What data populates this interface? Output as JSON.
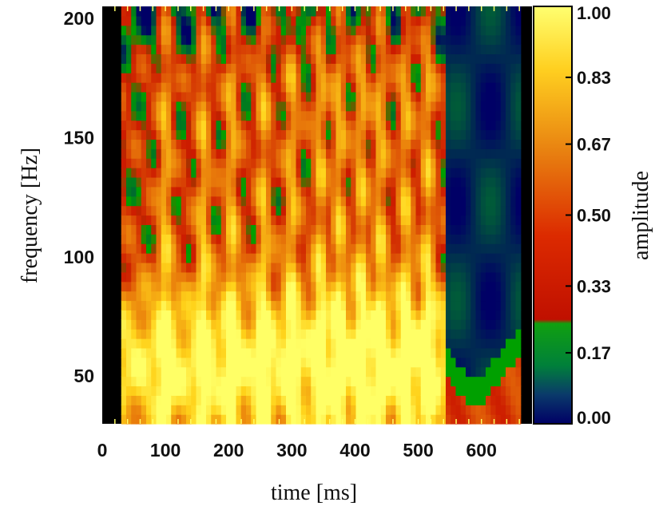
{
  "chart_data": {
    "type": "heatmap",
    "xlabel": "time [ms]",
    "ylabel": "frequency [Hz]",
    "colorbar_label": "amplitude",
    "xlim": [
      0,
      680
    ],
    "ylim": [
      30,
      205
    ],
    "data_xlim": [
      30,
      662
    ],
    "x_ticks": [
      0,
      100,
      200,
      300,
      400,
      500,
      600
    ],
    "x_tick_labels": [
      "0",
      "100",
      "200",
      "300",
      "400",
      "500",
      "600"
    ],
    "y_ticks": [
      50,
      100,
      150,
      200
    ],
    "y_tick_labels": [
      "50",
      "100",
      "150",
      "200"
    ],
    "colorbar_range": [
      0,
      1
    ],
    "colorbar_ticks": [
      0.0,
      0.17,
      0.33,
      0.5,
      0.67,
      0.83,
      1.0
    ],
    "colorbar_tick_labels": [
      "0.00",
      "0.17",
      "0.33",
      "0.50",
      "0.67",
      "0.83",
      "1.00"
    ],
    "colormap": [
      "#000066",
      "#006633",
      "#00a000",
      "#cc1a00",
      "#e8780a",
      "#ffd21a",
      "#ffff66"
    ],
    "ridge_times": [
      100,
      160,
      205,
      255,
      300,
      345,
      375,
      410,
      440,
      480,
      515
    ],
    "grid": false
  }
}
